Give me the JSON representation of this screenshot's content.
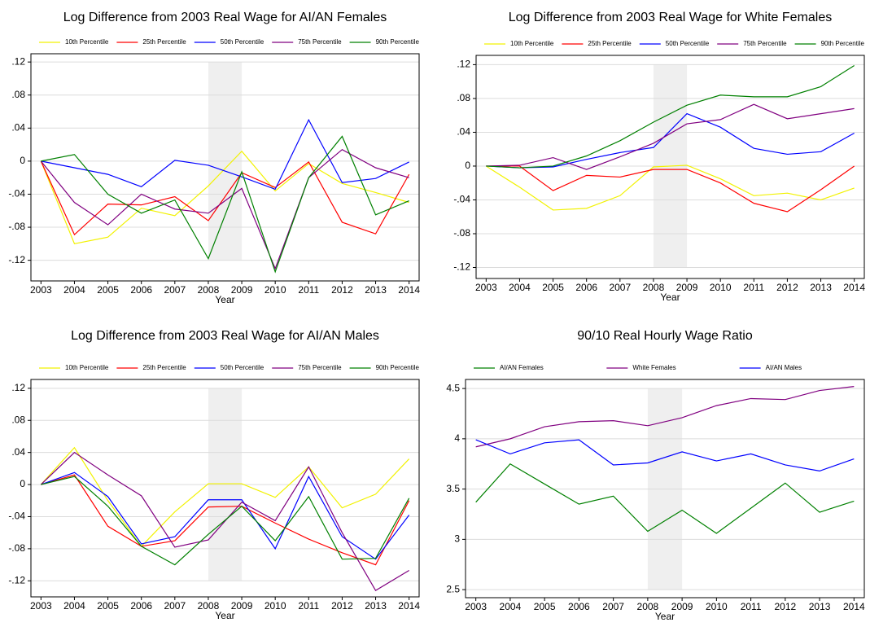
{
  "chart_data": [
    {
      "type": "line",
      "title": "Log Difference from 2003 Real Wage for AI/AN Females",
      "xlabel": "Year",
      "x": [
        2003,
        2004,
        2005,
        2006,
        2007,
        2008,
        2009,
        2010,
        2011,
        2012,
        2013,
        2014
      ],
      "xlim": [
        2002.7,
        2014.3
      ],
      "xticks": [
        2003,
        2004,
        2005,
        2006,
        2007,
        2008,
        2009,
        2010,
        2011,
        2012,
        2013,
        2014
      ],
      "ylim": [
        -0.145,
        0.13
      ],
      "yticks": [
        {
          "value": -0.12,
          "label": "-.12"
        },
        {
          "value": -0.08,
          "label": "-.08"
        },
        {
          "value": -0.04,
          "label": "-.04"
        },
        0,
        {
          "value": 0.04,
          "label": ".04"
        },
        {
          "value": 0.08,
          "label": ".08"
        },
        {
          "value": 0.12,
          "label": ".12"
        }
      ],
      "grid": true,
      "highlight_x": [
        2008,
        2009
      ],
      "highlight_y": [
        -0.12,
        0.12
      ],
      "series": [
        {
          "name": "10th Percentile",
          "color": "#f2f200",
          "values": [
            0,
            -0.1,
            -0.092,
            -0.057,
            -0.066,
            -0.03,
            0.012,
            -0.036,
            -0.003,
            -0.027,
            -0.038,
            -0.05
          ]
        },
        {
          "name": "25th Percentile",
          "color": "#ff0000",
          "values": [
            0,
            -0.089,
            -0.052,
            -0.053,
            -0.043,
            -0.072,
            -0.014,
            -0.032,
            -0.001,
            -0.074,
            -0.088,
            -0.016
          ]
        },
        {
          "name": "50th Percentile",
          "color": "#0000ff",
          "values": [
            0,
            -0.008,
            -0.016,
            -0.031,
            0.001,
            -0.005,
            -0.019,
            -0.034,
            0.05,
            -0.026,
            -0.021,
            -0.001
          ]
        },
        {
          "name": "75th Percentile",
          "color": "#800080",
          "values": [
            0,
            -0.05,
            -0.077,
            -0.04,
            -0.058,
            -0.063,
            -0.033,
            -0.13,
            -0.02,
            0.014,
            -0.008,
            -0.02
          ]
        },
        {
          "name": "90th Percentile",
          "color": "#008000",
          "values": [
            0,
            0.008,
            -0.04,
            -0.063,
            -0.047,
            -0.118,
            -0.013,
            -0.134,
            -0.02,
            0.03,
            -0.065,
            -0.048
          ]
        }
      ]
    },
    {
      "type": "line",
      "title": "Log Difference from 2003 Real Wage for White Females",
      "xlabel": "Year",
      "x": [
        2003,
        2004,
        2005,
        2006,
        2007,
        2008,
        2009,
        2010,
        2011,
        2012,
        2013,
        2014
      ],
      "xlim": [
        2002.7,
        2014.3
      ],
      "xticks": [
        2003,
        2004,
        2005,
        2006,
        2007,
        2008,
        2009,
        2010,
        2011,
        2012,
        2013,
        2014
      ],
      "ylim": [
        -0.133,
        0.131
      ],
      "yticks": [
        {
          "value": -0.12,
          "label": "-.12"
        },
        {
          "value": -0.08,
          "label": "-.08"
        },
        {
          "value": -0.04,
          "label": "-.04"
        },
        0,
        {
          "value": 0.04,
          "label": ".04"
        },
        {
          "value": 0.08,
          "label": ".08"
        },
        {
          "value": 0.12,
          "label": ".12"
        }
      ],
      "grid": true,
      "highlight_x": [
        2008,
        2009
      ],
      "highlight_y": [
        -0.12,
        0.12
      ],
      "series": [
        {
          "name": "10th Percentile",
          "color": "#f2f200",
          "values": [
            0,
            -0.025,
            -0.052,
            -0.05,
            -0.035,
            -0.001,
            0.001,
            -0.015,
            -0.035,
            -0.032,
            -0.04,
            -0.026
          ]
        },
        {
          "name": "25th Percentile",
          "color": "#ff0000",
          "values": [
            0,
            0,
            -0.029,
            -0.011,
            -0.013,
            -0.004,
            -0.004,
            -0.02,
            -0.044,
            -0.054,
            -0.028,
            0
          ]
        },
        {
          "name": "50th Percentile",
          "color": "#0000ff",
          "values": [
            0,
            -0.002,
            -0.001,
            0.008,
            0.016,
            0.022,
            0.062,
            0.046,
            0.021,
            0.014,
            0.017,
            0.039
          ]
        },
        {
          "name": "75th Percentile",
          "color": "#800080",
          "values": [
            0,
            0.001,
            0.01,
            -0.004,
            0.011,
            0.027,
            0.05,
            0.055,
            0.073,
            0.056,
            0.062,
            0.068
          ]
        },
        {
          "name": "90th Percentile",
          "color": "#008000",
          "values": [
            0,
            -0.002,
            0,
            0.012,
            0.03,
            0.052,
            0.072,
            0.084,
            0.082,
            0.082,
            0.094,
            0.119
          ]
        }
      ]
    },
    {
      "type": "line",
      "title": "Log Difference from 2003 Real Wage for AI/AN Males",
      "xlabel": "Year",
      "x": [
        2003,
        2004,
        2005,
        2006,
        2007,
        2008,
        2009,
        2010,
        2011,
        2012,
        2013,
        2014
      ],
      "xlim": [
        2002.7,
        2014.3
      ],
      "xticks": [
        2003,
        2004,
        2005,
        2006,
        2007,
        2008,
        2009,
        2010,
        2011,
        2012,
        2013,
        2014
      ],
      "ylim": [
        -0.14,
        0.131
      ],
      "yticks": [
        {
          "value": -0.12,
          "label": "-.12"
        },
        {
          "value": -0.08,
          "label": "-.08"
        },
        {
          "value": -0.04,
          "label": "-.04"
        },
        0,
        {
          "value": 0.04,
          "label": ".04"
        },
        {
          "value": 0.08,
          "label": ".08"
        },
        {
          "value": 0.12,
          "label": ".12"
        }
      ],
      "grid": true,
      "highlight_x": [
        2008,
        2009
      ],
      "highlight_y": [
        -0.12,
        0.12
      ],
      "series": [
        {
          "name": "10th Percentile",
          "color": "#f2f200",
          "values": [
            0,
            0.046,
            -0.02,
            -0.077,
            -0.034,
            0.001,
            0.001,
            -0.016,
            0.022,
            -0.029,
            -0.012,
            0.032
          ]
        },
        {
          "name": "25th Percentile",
          "color": "#ff0000",
          "values": [
            0,
            0.012,
            -0.052,
            -0.077,
            -0.07,
            -0.028,
            -0.027,
            -0.048,
            -0.068,
            -0.085,
            -0.1,
            -0.02
          ]
        },
        {
          "name": "50th Percentile",
          "color": "#0000ff",
          "values": [
            0,
            0.015,
            -0.015,
            -0.074,
            -0.065,
            -0.019,
            -0.019,
            -0.08,
            0.01,
            -0.065,
            -0.093,
            -0.038
          ]
        },
        {
          "name": "75th Percentile",
          "color": "#800080",
          "values": [
            0,
            0.04,
            0.012,
            -0.014,
            -0.078,
            -0.069,
            -0.022,
            -0.045,
            0.022,
            -0.06,
            -0.132,
            -0.107
          ]
        },
        {
          "name": "90th Percentile",
          "color": "#008000",
          "values": [
            0,
            0.01,
            -0.027,
            -0.077,
            -0.1,
            -0.062,
            -0.027,
            -0.07,
            -0.015,
            -0.093,
            -0.092,
            -0.017
          ]
        }
      ]
    },
    {
      "type": "line",
      "title": "90/10 Real Hourly Wage Ratio",
      "xlabel": "Year",
      "x": [
        2003,
        2004,
        2005,
        2006,
        2007,
        2008,
        2009,
        2010,
        2011,
        2012,
        2013,
        2014
      ],
      "xlim": [
        2002.7,
        2014.3
      ],
      "xticks": [
        2003,
        2004,
        2005,
        2006,
        2007,
        2008,
        2009,
        2010,
        2011,
        2012,
        2013,
        2014
      ],
      "ylim": [
        2.42,
        4.59
      ],
      "yticks": [
        2.5,
        3,
        3.5,
        4,
        4.5
      ],
      "grid": true,
      "highlight_x": [
        2008,
        2009
      ],
      "highlight_y": [
        2.5,
        4.5
      ],
      "series": [
        {
          "name": "AI/AN Females",
          "color": "#008000",
          "values": [
            3.37,
            3.75,
            3.55,
            3.35,
            3.43,
            3.08,
            3.29,
            3.06,
            3.31,
            3.56,
            3.27,
            3.38
          ]
        },
        {
          "name": "White Females",
          "color": "#800080",
          "values": [
            3.92,
            4.0,
            4.12,
            4.17,
            4.18,
            4.13,
            4.21,
            4.33,
            4.4,
            4.39,
            4.48,
            4.52
          ]
        },
        {
          "name": "AI/AN Males",
          "color": "#0000ff",
          "values": [
            3.99,
            3.85,
            3.96,
            3.99,
            3.74,
            3.76,
            3.87,
            3.78,
            3.85,
            3.74,
            3.68,
            3.8
          ]
        }
      ]
    }
  ]
}
